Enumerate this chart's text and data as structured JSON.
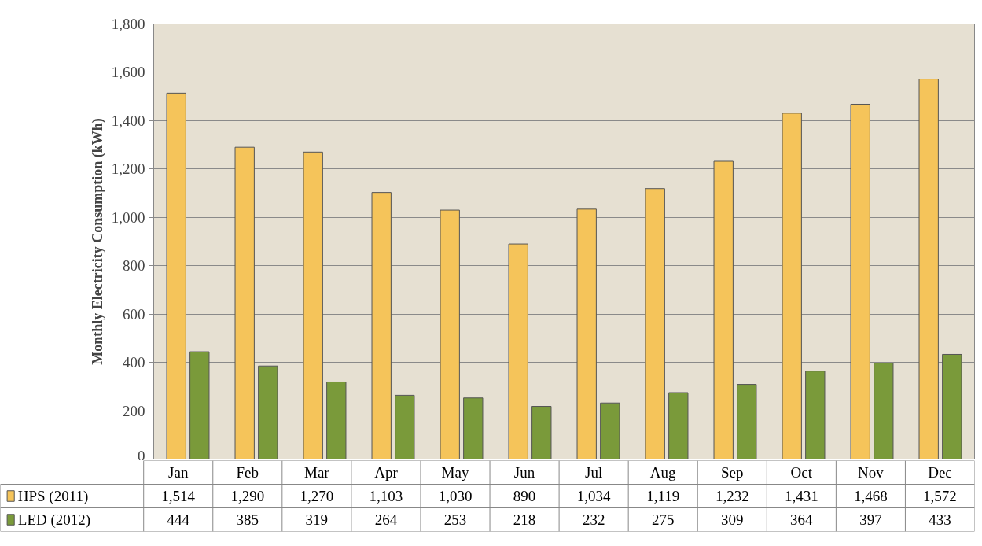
{
  "chart_data": {
    "type": "bar",
    "ylabel": "Monthly Electricity Consumption (kWh)",
    "categories": [
      "Jan",
      "Feb",
      "Mar",
      "Apr",
      "May",
      "Jun",
      "Jul",
      "Aug",
      "Sep",
      "Oct",
      "Nov",
      "Dec"
    ],
    "series": [
      {
        "name": "HPS (2011)",
        "color": "#f5c45a",
        "values": [
          1514,
          1290,
          1270,
          1103,
          1030,
          890,
          1034,
          1119,
          1232,
          1431,
          1468,
          1572
        ],
        "value_labels": [
          "1,514",
          "1,290",
          "1,270",
          "1,103",
          "1,030",
          "890",
          "1,034",
          "1,119",
          "1,232",
          "1,431",
          "1,468",
          "1,572"
        ]
      },
      {
        "name": "LED (2012)",
        "color": "#7a9a3a",
        "values": [
          444,
          385,
          319,
          264,
          253,
          218,
          232,
          275,
          309,
          364,
          397,
          433
        ],
        "value_labels": [
          "444",
          "385",
          "319",
          "264",
          "253",
          "218",
          "232",
          "275",
          "309",
          "364",
          "397",
          "433"
        ]
      }
    ],
    "ylim": [
      0,
      1800
    ],
    "yticks": [
      {
        "value": 0,
        "label": "0"
      },
      {
        "value": 200,
        "label": "200"
      },
      {
        "value": 400,
        "label": "400"
      },
      {
        "value": 600,
        "label": "600"
      },
      {
        "value": 800,
        "label": "800"
      },
      {
        "value": 1000,
        "label": "1,000"
      },
      {
        "value": 1200,
        "label": "1,200"
      },
      {
        "value": 1400,
        "label": "1,400"
      },
      {
        "value": 1600,
        "label": "1,600"
      },
      {
        "value": 1800,
        "label": "1,800"
      }
    ],
    "grid": "y",
    "legend": "bottom"
  }
}
